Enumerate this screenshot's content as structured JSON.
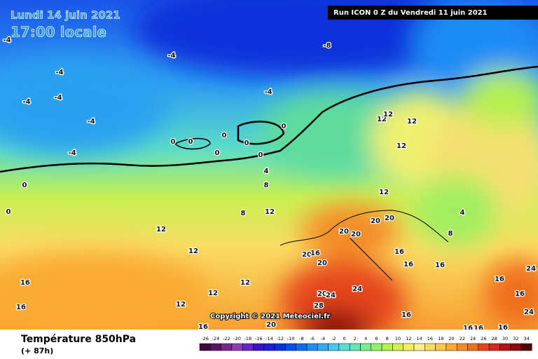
{
  "header": {
    "date": "Lundi 14 juin 2021",
    "time": "17:00 locale",
    "run": "Run ICON 0 Z du Vendredi 11 juin 2021"
  },
  "copyright": "Copyright © 2021 Meteociel.fr",
  "footer": {
    "title": "Température 850hPa",
    "lead_time": "(+ 87h)"
  },
  "contour_labels": [
    -4,
    -4,
    -4,
    -4,
    -4,
    -4,
    -4,
    -4,
    -8,
    0,
    0,
    0,
    0,
    0,
    0,
    0,
    0,
    0,
    4,
    8,
    8,
    12,
    12,
    12,
    12,
    12,
    12,
    12,
    12,
    12,
    12,
    12,
    4,
    8,
    20,
    20,
    20,
    20,
    20,
    16,
    20,
    16,
    16,
    16,
    16,
    16,
    16,
    20,
    24,
    24,
    28,
    20,
    16,
    16,
    24,
    16,
    24,
    16,
    16,
    16
  ],
  "scale": {
    "values": [
      -26,
      -24,
      -22,
      -20,
      -18,
      -16,
      -14,
      -12,
      -10,
      -8,
      -6,
      -4,
      -2,
      0,
      2,
      4,
      6,
      8,
      10,
      12,
      14,
      16,
      18,
      20,
      22,
      24,
      26,
      28,
      30,
      32,
      34
    ],
    "colors": [
      "#3c0a3c",
      "#5a1464",
      "#78288c",
      "#8c3cb4",
      "#6428c8",
      "#3c14c8",
      "#1e1ed2",
      "#0a32dc",
      "#0050e6",
      "#0a6ef0",
      "#1e8cf5",
      "#32aaf5",
      "#46c8f0",
      "#5adcdc",
      "#64e6b4",
      "#78eb8c",
      "#96f064",
      "#b4f050",
      "#d2f050",
      "#f0f064",
      "#faf08c",
      "#fadc64",
      "#fac846",
      "#faaa32",
      "#f58c28",
      "#f06e1e",
      "#e6461e",
      "#d2281e",
      "#b41414",
      "#8c0a0a",
      "#500000"
    ]
  }
}
